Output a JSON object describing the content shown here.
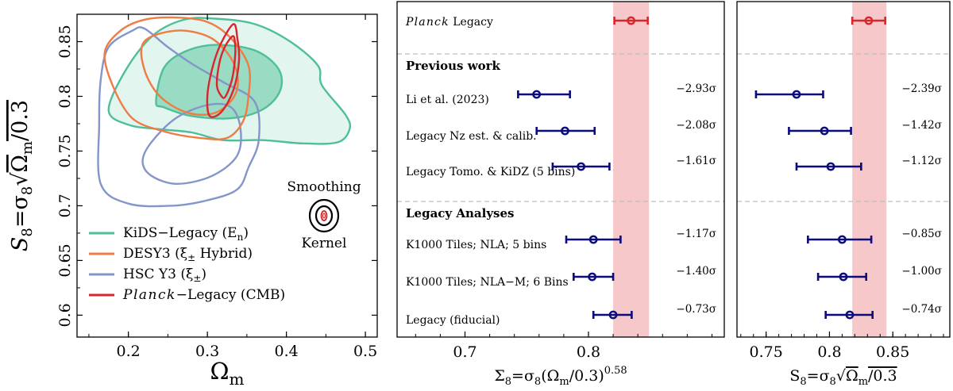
{
  "colors": {
    "kids": "#4fbf99",
    "kids_fill": "#5cc6a0",
    "desy3": "#f07b45",
    "hsc": "#8496c9",
    "planck": "#d8262c",
    "planck_band": "#f4b6b8",
    "points": "#0b0b7a",
    "sep": "#bdbdbd"
  },
  "chart_data": [
    {
      "type": "contour",
      "title": "",
      "xlabel_main": "Ω",
      "xlabel_sub": "m",
      "ylabel_pre": "S",
      "ylabel_sub": "8",
      "ylabel_rest": "=σ",
      "ylabel_sub2": "8",
      "ylabel_sqrt": "Ω",
      "ylabel_sqrt_sub": "m",
      "ylabel_tail": "/0.3",
      "xlim": [
        0.135,
        0.515
      ],
      "ylim": [
        0.58,
        0.875
      ],
      "xticks": [
        "0.2",
        "0.3",
        "0.4",
        "0.5"
      ],
      "xtick_values": [
        0.2,
        0.3,
        0.4,
        0.5
      ],
      "yticks": [
        "0.6",
        "0.65",
        "0.7",
        "0.75",
        "0.8",
        "0.85"
      ],
      "ytick_values": [
        0.6,
        0.65,
        0.7,
        0.75,
        0.8,
        0.85
      ],
      "legend": [
        {
          "key": "kids",
          "text": "KiDS−Legacy (E",
          "sub": "n",
          "tail": ")"
        },
        {
          "key": "desy3",
          "text": "DESY3 (ξ",
          "sub": "±",
          "tail": " Hybrid)"
        },
        {
          "key": "hsc",
          "text": "HSC Y3 (ξ",
          "sub": "±",
          "tail": ")"
        },
        {
          "key": "planck",
          "italic": "Planck",
          "text": "−Legacy (CMB)",
          "sub": "",
          "tail": ""
        }
      ],
      "kernel_top": "Smoothing",
      "kernel_bottom": "Kernel",
      "series": [
        {
          "name": "KiDS-Legacy 68%",
          "points": [
            [
              0.235,
              0.795
            ],
            [
              0.245,
              0.826
            ],
            [
              0.272,
              0.841
            ],
            [
              0.31,
              0.847
            ],
            [
              0.36,
              0.842
            ],
            [
              0.39,
              0.825
            ],
            [
              0.392,
              0.805
            ],
            [
              0.37,
              0.788
            ],
            [
              0.33,
              0.78
            ],
            [
              0.28,
              0.782
            ],
            [
              0.245,
              0.79
            ]
          ]
        },
        {
          "name": "KiDS-Legacy 95%",
          "points": [
            [
              0.175,
              0.787
            ],
            [
              0.195,
              0.822
            ],
            [
              0.23,
              0.855
            ],
            [
              0.27,
              0.87
            ],
            [
              0.31,
              0.871
            ],
            [
              0.36,
              0.866
            ],
            [
              0.405,
              0.85
            ],
            [
              0.44,
              0.828
            ],
            [
              0.445,
              0.81
            ],
            [
              0.475,
              0.783
            ],
            [
              0.48,
              0.77
            ],
            [
              0.465,
              0.758
            ],
            [
              0.42,
              0.757
            ],
            [
              0.37,
              0.76
            ],
            [
              0.32,
              0.76
            ],
            [
              0.28,
              0.767
            ],
            [
              0.24,
              0.77
            ],
            [
              0.2,
              0.774
            ]
          ]
        },
        {
          "name": "DESY3 68%",
          "points": [
            [
              0.17,
              0.84
            ],
            [
              0.19,
              0.86
            ],
            [
              0.22,
              0.87
            ],
            [
              0.26,
              0.872
            ],
            [
              0.3,
              0.868
            ],
            [
              0.33,
              0.853
            ],
            [
              0.352,
              0.828
            ],
            [
              0.352,
              0.8
            ],
            [
              0.345,
              0.777
            ],
            [
              0.325,
              0.762
            ],
            [
              0.29,
              0.762
            ],
            [
              0.245,
              0.768
            ],
            [
              0.205,
              0.78
            ],
            [
              0.18,
              0.81
            ]
          ]
        },
        {
          "name": "DESY3 95%",
          "points": [
            [
              0.22,
              0.85
            ],
            [
              0.26,
              0.86
            ],
            [
              0.3,
              0.855
            ],
            [
              0.325,
              0.84
            ],
            [
              0.338,
              0.82
            ],
            [
              0.334,
              0.8
            ],
            [
              0.31,
              0.785
            ],
            [
              0.275,
              0.785
            ],
            [
              0.24,
              0.8
            ],
            [
              0.22,
              0.825
            ]
          ]
        },
        {
          "name": "HSC Y3 68%",
          "points": [
            [
              0.218,
              0.74
            ],
            [
              0.228,
              0.757
            ],
            [
              0.26,
              0.78
            ],
            [
              0.3,
              0.792
            ],
            [
              0.33,
              0.79
            ],
            [
              0.342,
              0.77
            ],
            [
              0.337,
              0.745
            ],
            [
              0.305,
              0.727
            ],
            [
              0.262,
              0.72
            ],
            [
              0.23,
              0.727
            ]
          ]
        },
        {
          "name": "HSC Y3 95%",
          "points": [
            [
              0.165,
              0.72
            ],
            [
              0.163,
              0.775
            ],
            [
              0.165,
              0.815
            ],
            [
              0.175,
              0.845
            ],
            [
              0.205,
              0.86
            ],
            [
              0.22,
              0.862
            ],
            [
              0.25,
              0.845
            ],
            [
              0.28,
              0.83
            ],
            [
              0.32,
              0.813
            ],
            [
              0.36,
              0.795
            ],
            [
              0.365,
              0.76
            ],
            [
              0.352,
              0.735
            ],
            [
              0.338,
              0.715
            ],
            [
              0.3,
              0.705
            ],
            [
              0.255,
              0.7
            ],
            [
              0.2,
              0.702
            ]
          ]
        },
        {
          "name": "Planck-Legacy 68%",
          "points": [
            [
              0.318,
              0.8
            ],
            [
              0.312,
              0.81
            ],
            [
              0.315,
              0.83
            ],
            [
              0.322,
              0.845
            ],
            [
              0.332,
              0.855
            ],
            [
              0.335,
              0.849
            ],
            [
              0.335,
              0.835
            ],
            [
              0.331,
              0.815
            ],
            [
              0.323,
              0.8
            ]
          ]
        },
        {
          "name": "Planck-Legacy 95%",
          "points": [
            [
              0.303,
              0.782
            ],
            [
              0.3,
              0.8
            ],
            [
              0.306,
              0.825
            ],
            [
              0.317,
              0.848
            ],
            [
              0.333,
              0.866
            ],
            [
              0.338,
              0.853
            ],
            [
              0.34,
              0.832
            ],
            [
              0.333,
              0.806
            ],
            [
              0.318,
              0.786
            ]
          ]
        }
      ]
    },
    {
      "type": "errorbar",
      "xlabel_pre": "Σ",
      "xlabel_sub": "8",
      "xlabel_mid": "=σ",
      "xlabel_sub2": "8",
      "xlabel_paren": "(Ω",
      "xlabel_sub3": "m",
      "xlabel_tail": "/0.3)",
      "xlabel_sup": "0.58",
      "xlim": [
        0.645,
        0.91
      ],
      "xticks": [
        "0.7",
        "0.8"
      ],
      "xtick_values": [
        0.7,
        0.8
      ],
      "band": [
        0.82,
        0.849
      ],
      "planck": {
        "label_italic": "Planck",
        "label": " Legacy",
        "value": 0.8345,
        "low": 0.821,
        "high": 0.848
      },
      "sections": [
        "Previous work",
        "Legacy Analyses"
      ],
      "rows": [
        {
          "label": "Li et al. (2023)",
          "value": 0.758,
          "low": 0.743,
          "high": 0.785,
          "sigma": "−2.93σ"
        },
        {
          "label": "Legacy Nz est. & calib.",
          "value": 0.781,
          "low": 0.758,
          "high": 0.805,
          "sigma": "−2.08σ"
        },
        {
          "label": "Legacy Tomo. & KiDZ (5 bins)",
          "value": 0.794,
          "low": 0.771,
          "high": 0.817,
          "sigma": "−1.61σ"
        },
        {
          "label": "K1000 Tiles; NLA; 5 bins",
          "value": 0.804,
          "low": 0.782,
          "high": 0.826,
          "sigma": "−1.17σ"
        },
        {
          "label": "K1000 Tiles; NLA−M; 6 Bins",
          "value": 0.803,
          "low": 0.788,
          "high": 0.82,
          "sigma": "−1.40σ"
        },
        {
          "label": "Legacy (fiducial)",
          "value": 0.82,
          "low": 0.804,
          "high": 0.835,
          "sigma": "−0.73σ"
        }
      ]
    },
    {
      "type": "errorbar",
      "xlabel_pre": "S",
      "xlabel_sub": "8",
      "xlabel_mid": "=σ",
      "xlabel_sub2": "8",
      "xlabel_sqrt": "Ω",
      "xlabel_sub3": "m",
      "xlabel_tail": "/0.3",
      "xlim": [
        0.727,
        0.895
      ],
      "xticks": [
        "0.75",
        "0.8",
        "0.85"
      ],
      "xtick_values": [
        0.75,
        0.8,
        0.85
      ],
      "band": [
        0.818,
        0.845
      ],
      "planck": {
        "value": 0.831,
        "low": 0.818,
        "high": 0.844
      },
      "rows": [
        {
          "value": 0.774,
          "low": 0.742,
          "high": 0.795,
          "sigma": "−2.39σ"
        },
        {
          "value": 0.796,
          "low": 0.768,
          "high": 0.817,
          "sigma": "−1.42σ"
        },
        {
          "value": 0.801,
          "low": 0.774,
          "high": 0.825,
          "sigma": "−1.12σ"
        },
        {
          "value": 0.81,
          "low": 0.783,
          "high": 0.833,
          "sigma": "−0.85σ"
        },
        {
          "value": 0.811,
          "low": 0.791,
          "high": 0.829,
          "sigma": "−1.00σ"
        },
        {
          "value": 0.816,
          "low": 0.797,
          "high": 0.834,
          "sigma": "−0.74σ"
        }
      ]
    }
  ]
}
